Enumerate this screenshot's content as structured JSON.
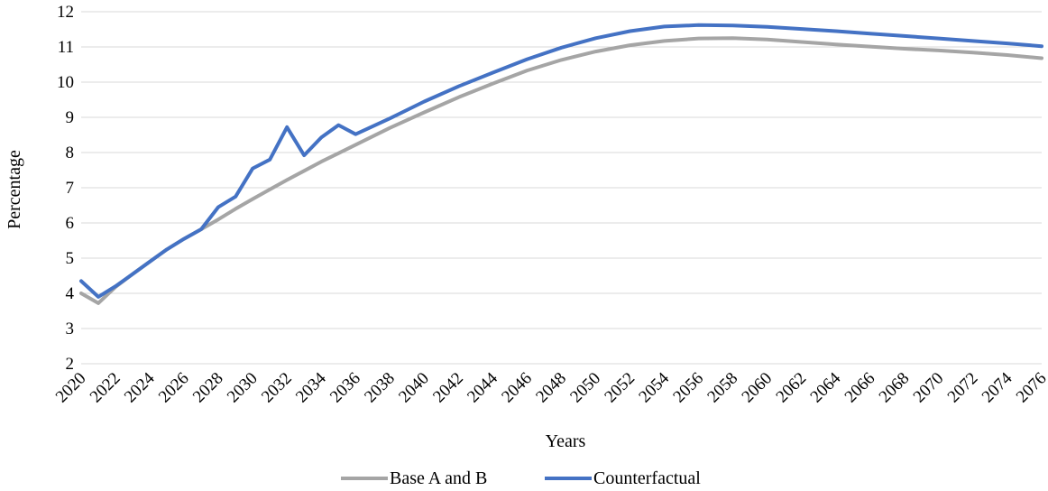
{
  "chart_data": {
    "type": "line",
    "title": "",
    "xlabel": "Years",
    "ylabel": "Percentage",
    "ylim": [
      2,
      12
    ],
    "yticks": [
      2,
      3,
      4,
      5,
      6,
      7,
      8,
      9,
      10,
      11,
      12
    ],
    "xlim": [
      2020,
      2076
    ],
    "xticks": [
      2020,
      2022,
      2024,
      2026,
      2028,
      2030,
      2032,
      2034,
      2036,
      2038,
      2040,
      2042,
      2044,
      2046,
      2048,
      2050,
      2052,
      2054,
      2056,
      2058,
      2060,
      2062,
      2064,
      2066,
      2068,
      2070,
      2072,
      2074,
      2076
    ],
    "grid": "horizontal",
    "legend_position": "bottom",
    "series": [
      {
        "name": "Base A and B",
        "color": "#a5a5a5",
        "points": [
          [
            2020,
            4.0
          ],
          [
            2021,
            3.72
          ],
          [
            2022,
            4.18
          ],
          [
            2023,
            4.55
          ],
          [
            2024,
            4.9
          ],
          [
            2025,
            5.25
          ],
          [
            2026,
            5.55
          ],
          [
            2027,
            5.82
          ],
          [
            2028,
            6.1
          ],
          [
            2029,
            6.4
          ],
          [
            2030,
            6.68
          ],
          [
            2031,
            6.95
          ],
          [
            2032,
            7.22
          ],
          [
            2033,
            7.48
          ],
          [
            2034,
            7.74
          ],
          [
            2035,
            7.98
          ],
          [
            2036,
            8.22
          ],
          [
            2038,
            8.7
          ],
          [
            2040,
            9.14
          ],
          [
            2042,
            9.57
          ],
          [
            2044,
            9.96
          ],
          [
            2046,
            10.33
          ],
          [
            2048,
            10.63
          ],
          [
            2050,
            10.87
          ],
          [
            2052,
            11.05
          ],
          [
            2054,
            11.17
          ],
          [
            2056,
            11.24
          ],
          [
            2058,
            11.25
          ],
          [
            2060,
            11.21
          ],
          [
            2062,
            11.14
          ],
          [
            2064,
            11.07
          ],
          [
            2066,
            11.01
          ],
          [
            2068,
            10.95
          ],
          [
            2070,
            10.9
          ],
          [
            2072,
            10.84
          ],
          [
            2074,
            10.77
          ],
          [
            2076,
            10.68
          ]
        ]
      },
      {
        "name": "Counterfactual",
        "color": "#4472c4",
        "points": [
          [
            2020,
            4.35
          ],
          [
            2021,
            3.9
          ],
          [
            2022,
            4.2
          ],
          [
            2023,
            4.55
          ],
          [
            2024,
            4.9
          ],
          [
            2025,
            5.25
          ],
          [
            2026,
            5.55
          ],
          [
            2027,
            5.82
          ],
          [
            2028,
            6.45
          ],
          [
            2029,
            6.75
          ],
          [
            2030,
            7.55
          ],
          [
            2031,
            7.8
          ],
          [
            2032,
            8.72
          ],
          [
            2033,
            7.92
          ],
          [
            2034,
            8.43
          ],
          [
            2035,
            8.78
          ],
          [
            2036,
            8.52
          ],
          [
            2038,
            8.97
          ],
          [
            2040,
            9.45
          ],
          [
            2042,
            9.88
          ],
          [
            2044,
            10.27
          ],
          [
            2046,
            10.65
          ],
          [
            2048,
            10.98
          ],
          [
            2050,
            11.25
          ],
          [
            2052,
            11.45
          ],
          [
            2054,
            11.58
          ],
          [
            2056,
            11.62
          ],
          [
            2058,
            11.61
          ],
          [
            2060,
            11.57
          ],
          [
            2062,
            11.51
          ],
          [
            2064,
            11.45
          ],
          [
            2066,
            11.38
          ],
          [
            2068,
            11.31
          ],
          [
            2070,
            11.24
          ],
          [
            2072,
            11.17
          ],
          [
            2074,
            11.1
          ],
          [
            2076,
            11.02
          ]
        ]
      }
    ]
  }
}
